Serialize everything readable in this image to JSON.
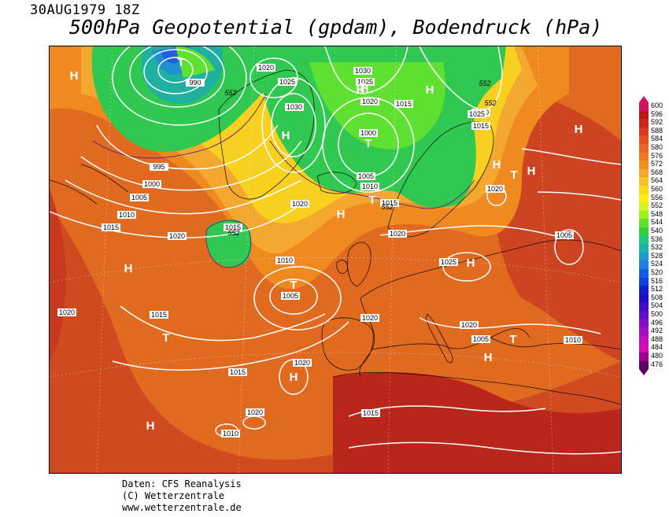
{
  "header": {
    "date": "30AUG1979 18Z",
    "title": "500hPa Geopotential (gpdam), Bodendruck (hPa)"
  },
  "footer": {
    "line1": "Daten: CFS Reanalysis",
    "line2": "(C) Wetterzentrale",
    "line3": "www.wetterzentrale.de"
  },
  "legend": {
    "levels": [
      "600",
      "596",
      "592",
      "588",
      "584",
      "580",
      "576",
      "572",
      "568",
      "564",
      "560",
      "556",
      "552",
      "548",
      "544",
      "540",
      "536",
      "532",
      "528",
      "524",
      "520",
      "516",
      "512",
      "508",
      "504",
      "500",
      "496",
      "492",
      "488",
      "484",
      "480",
      "476"
    ],
    "colors": [
      "#d01060",
      "#b81818",
      "#c82820",
      "#d83c20",
      "#e05020",
      "#e86428",
      "#ee7a20",
      "#f09020",
      "#f4a830",
      "#f6c028",
      "#fad820",
      "#fcf010",
      "#d8f020",
      "#a0f020",
      "#60e030",
      "#30d040",
      "#20c880",
      "#20b0b0",
      "#2098d0",
      "#2080e0",
      "#1060e0",
      "#1040d8",
      "#1020c8",
      "#2010c0",
      "#4010c0",
      "#6010c0",
      "#8010c0",
      "#a010c0",
      "#c010c0",
      "#d010b0",
      "#a00090",
      "#600060"
    ]
  },
  "map": {
    "pressure_centers": [
      {
        "symbol": "T",
        "kind": "low"
      },
      {
        "symbol": "H",
        "kind": "high"
      },
      {
        "symbol": "H",
        "kind": "high"
      },
      {
        "symbol": "H",
        "kind": "high"
      },
      {
        "symbol": "T",
        "kind": "low"
      },
      {
        "symbol": "H",
        "kind": "high"
      },
      {
        "symbol": "T",
        "kind": "low"
      },
      {
        "symbol": "H",
        "kind": "high"
      },
      {
        "symbol": "H",
        "kind": "high"
      },
      {
        "symbol": "T",
        "kind": "low"
      },
      {
        "symbol": "H",
        "kind": "high"
      },
      {
        "symbol": "H",
        "kind": "high"
      },
      {
        "symbol": "T",
        "kind": "low"
      },
      {
        "symbol": "T",
        "kind": "low"
      },
      {
        "symbol": "H",
        "kind": "high"
      },
      {
        "symbol": "H",
        "kind": "high"
      },
      {
        "symbol": "H",
        "kind": "high"
      },
      {
        "symbol": "T",
        "kind": "low"
      },
      {
        "symbol": "H",
        "kind": "high"
      },
      {
        "symbol": "T",
        "kind": "low"
      },
      {
        "symbol": "H",
        "kind": "high"
      },
      {
        "symbol": "H",
        "kind": "high"
      }
    ],
    "isobar_labels": [
      "1020",
      "990",
      "1025",
      "1030",
      "1030",
      "1025",
      "1020",
      "1015",
      "995",
      "1000",
      "1005",
      "1010",
      "1015",
      "1020",
      "1015",
      "1020",
      "1010",
      "1005",
      "1015",
      "1020",
      "1020",
      "1015",
      "1020",
      "1020",
      "1010",
      "1020",
      "1025",
      "1020",
      "1015",
      "1005",
      "1020",
      "1010",
      "1015",
      "1025",
      "1000",
      "1005",
      "1010",
      "1015",
      "1010",
      "1005"
    ],
    "contour_labels_552": [
      "552",
      "552",
      "552",
      "552",
      "552"
    ]
  }
}
